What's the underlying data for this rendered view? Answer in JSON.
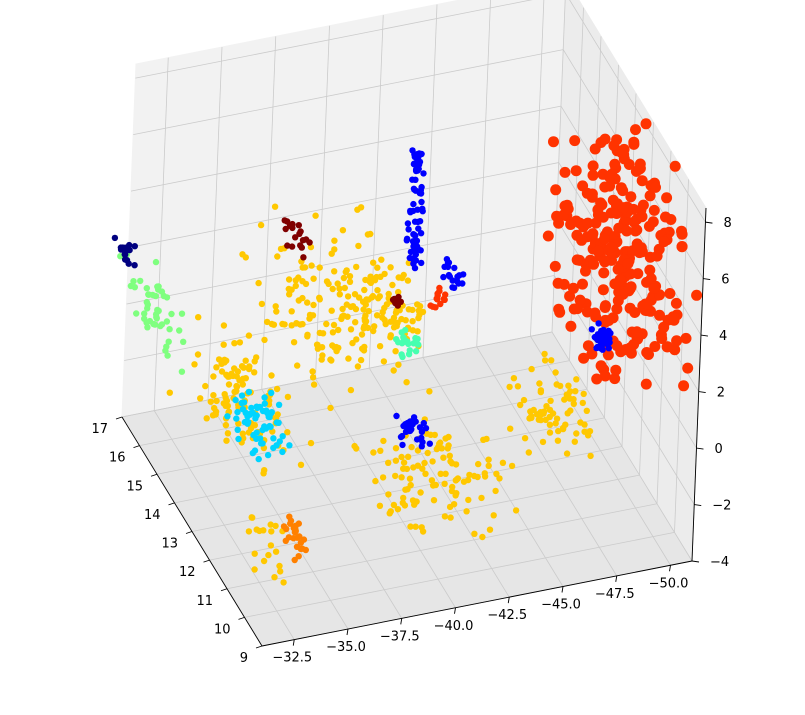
{
  "chart_data": {
    "type": "scatter",
    "projection": "3d",
    "title": "",
    "xlabel": "",
    "ylabel": "",
    "zlabel": "",
    "grid": true,
    "x_axis": {
      "ticks": [
        "9",
        "10",
        "11",
        "12",
        "13",
        "14",
        "15",
        "16",
        "17"
      ],
      "range": [
        9,
        17
      ]
    },
    "y_axis": {
      "ticks": [
        "−32.5",
        "−35.0",
        "−37.5",
        "−40.0",
        "−42.5",
        "−45.0",
        "−47.5",
        "−50.0"
      ],
      "range": [
        -31,
        -51
      ]
    },
    "z_axis": {
      "ticks": [
        "−4",
        "−2",
        "0",
        "2",
        "4",
        "6",
        "8"
      ],
      "range": [
        -4,
        8.5
      ]
    },
    "series": [
      {
        "color": "#ff3300",
        "clusters": [
          {
            "x": [
              9.0,
              12.5
            ],
            "y": [
              -46.5,
              -51.0
            ],
            "z": [
              2.0,
              8.5
            ],
            "n": 260,
            "shape": "slab"
          },
          {
            "x": [
              14.3,
              14.8
            ],
            "y": [
              -43.0,
              -44.0
            ],
            "z": [
              0.3,
              1.3
            ],
            "n": 14
          }
        ]
      },
      {
        "color": "#ffc800",
        "clusters": [
          {
            "x": [
              12.0,
              17.0
            ],
            "y": [
              -35.0,
              -42.5
            ],
            "z": [
              -1.0,
              3.5
            ],
            "n": 170
          },
          {
            "x": [
              11.0,
              16.0
            ],
            "y": [
              -31.5,
              -35.5
            ],
            "z": [
              -2.0,
              1.5
            ],
            "n": 110
          },
          {
            "x": [
              9.0,
              13.0
            ],
            "y": [
              -37.0,
              -44.0
            ],
            "z": [
              -3.0,
              0.0
            ],
            "n": 110
          },
          {
            "x": [
              9.5,
              12.5
            ],
            "y": [
              -44.0,
              -48.0
            ],
            "z": [
              -1.0,
              1.0
            ],
            "n": 70
          },
          {
            "x": [
              13.5,
              16.0
            ],
            "y": [
              -40.5,
              -43.0
            ],
            "z": [
              -0.5,
              2.0
            ],
            "n": 45
          },
          {
            "x": [
              9.0,
              11.0
            ],
            "y": [
              -31.0,
              -33.0
            ],
            "z": [
              -2.5,
              -1.0
            ],
            "n": 20
          }
        ]
      },
      {
        "color": "#0000ff",
        "clusters": [
          {
            "x": [
              14.0,
              14.5
            ],
            "y": [
              -41.8,
              -42.2
            ],
            "z": [
              2.5,
              6.5
            ],
            "n": 70,
            "shape": "column"
          },
          {
            "x": [
              12.8,
              13.5
            ],
            "y": [
              -49.5,
              -50.5
            ],
            "z": [
              -0.6,
              0.4
            ],
            "n": 40
          },
          {
            "x": [
              12.5,
              13.5
            ],
            "y": [
              -40.5,
              -42.0
            ],
            "z": [
              -2.5,
              -1.5
            ],
            "n": 30
          },
          {
            "x": [
              14.5,
              15.5
            ],
            "y": [
              -44.0,
              -45.0
            ],
            "z": [
              0.5,
              1.5
            ],
            "n": 18
          }
        ]
      },
      {
        "color": "#7fff7f",
        "clusters": [
          {
            "x": [
              13.0,
              16.5
            ],
            "y": [
              -29.5,
              -31.0
            ],
            "z": [
              1.0,
              3.5
            ],
            "n": 50
          }
        ]
      },
      {
        "color": "#00d4ff",
        "clusters": [
          {
            "x": [
              11.5,
              13.5
            ],
            "y": [
              -32.0,
              -35.0
            ],
            "z": [
              -0.8,
              0.8
            ],
            "n": 60
          }
        ]
      },
      {
        "color": "#000080",
        "clusters": [
          {
            "x": [
              16.0,
              17.0
            ],
            "y": [
              -30.2,
              -30.6
            ],
            "z": [
              2.0,
              3.0
            ],
            "n": 16
          }
        ]
      },
      {
        "color": "#800000",
        "clusters": [
          {
            "x": [
              15.5,
              16.5
            ],
            "y": [
              -37.0,
              -38.5
            ],
            "z": [
              2.0,
              3.2
            ],
            "n": 18
          },
          {
            "x": [
              14.5,
              15.0
            ],
            "y": [
              -41.5,
              -42.0
            ],
            "z": [
              0.5,
              1.0
            ],
            "n": 8
          }
        ]
      },
      {
        "color": "#46ffb0",
        "clusters": [
          {
            "x": [
              13.5,
              14.3
            ],
            "y": [
              -41.0,
              -42.0
            ],
            "z": [
              -0.2,
              0.5
            ],
            "n": 20
          }
        ]
      },
      {
        "color": "#ff8000",
        "clusters": [
          {
            "x": [
              9.3,
              10.3
            ],
            "y": [
              -32.5,
              -33.5
            ],
            "z": [
              -2.0,
              -0.5
            ],
            "n": 25
          }
        ]
      }
    ]
  }
}
